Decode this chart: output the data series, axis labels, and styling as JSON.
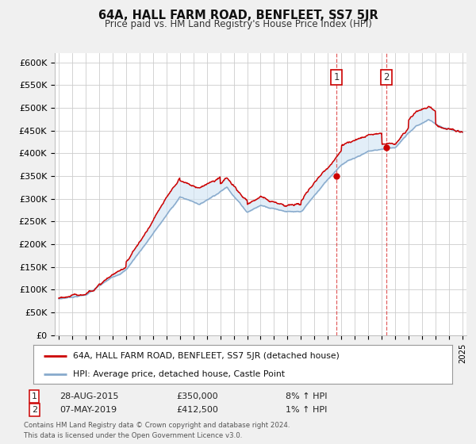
{
  "title": "64A, HALL FARM ROAD, BENFLEET, SS7 5JR",
  "subtitle": "Price paid vs. HM Land Registry's House Price Index (HPI)",
  "red_line_label": "64A, HALL FARM ROAD, BENFLEET, SS7 5JR (detached house)",
  "blue_line_label": "HPI: Average price, detached house, Castle Point",
  "annotation1": {
    "num": "1",
    "date": "28-AUG-2015",
    "price": "£350,000",
    "pct": "8% ↑ HPI"
  },
  "annotation2": {
    "num": "2",
    "date": "07-MAY-2019",
    "price": "£412,500",
    "pct": "1% ↑ HPI"
  },
  "footnote": "Contains HM Land Registry data © Crown copyright and database right 2024.\nThis data is licensed under the Open Government Licence v3.0.",
  "red_color": "#cc0000",
  "blue_color": "#88aacc",
  "shade_color": "#d0e4f4",
  "vline_color": "#dd4444",
  "background_color": "#f0f0f0",
  "plot_bg_color": "#ffffff",
  "legend_bg": "#ffffff",
  "ylim": [
    0,
    620000
  ],
  "yticks": [
    0,
    50000,
    100000,
    150000,
    200000,
    250000,
    300000,
    350000,
    400000,
    450000,
    500000,
    550000,
    600000
  ],
  "sale1_year": 2015.65,
  "sale2_year": 2019.35,
  "sale1_price": 350000,
  "sale2_price": 412500
}
